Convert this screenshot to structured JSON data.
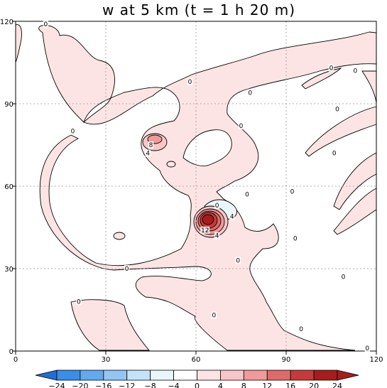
{
  "chart_data": {
    "type": "heatmap",
    "title": "w at 5 km (t = 1 h 20 m)",
    "xlim": [
      0,
      120
    ],
    "ylim": [
      0,
      120
    ],
    "x_ticks": [
      0,
      30,
      60,
      90,
      120
    ],
    "y_ticks": [
      0,
      30,
      60,
      90,
      120
    ],
    "x_tick_labels": [
      "0",
      "30",
      "60",
      "90",
      "120"
    ],
    "y_tick_labels": [
      "0",
      "30",
      "60",
      "90",
      "120"
    ],
    "grid": true,
    "contour_levels": [
      -24,
      -20,
      -16,
      -12,
      -8,
      -4,
      0,
      4,
      8,
      12,
      16,
      20,
      24
    ],
    "colorbar": {
      "labels": [
        "−24",
        "−20",
        "−16",
        "−12",
        "−8",
        "−4",
        "0",
        "4",
        "8",
        "12",
        "16",
        "20",
        "24"
      ],
      "colors": [
        "#1f6fd8",
        "#3b8ee8",
        "#63a9f0",
        "#92c6f5",
        "#c4e3fa",
        "#e8f7fb",
        "#ffffff",
        "#fde4e4",
        "#f8c6c6",
        "#f09a9a",
        "#df6a6a",
        "#c73a3a",
        "#a81c1c",
        "#a81c1c"
      ]
    },
    "contour_labels": [
      {
        "text": "0",
        "x": 10,
        "y": 119
      },
      {
        "text": "0",
        "x": 58,
        "y": 98
      },
      {
        "text": "0",
        "x": 78,
        "y": 94
      },
      {
        "text": "0",
        "x": 107,
        "y": 88
      },
      {
        "text": "0",
        "x": 113,
        "y": 102
      },
      {
        "text": "0",
        "x": 105,
        "y": 103
      },
      {
        "text": "0",
        "x": 19,
        "y": 80
      },
      {
        "text": "0",
        "x": 75,
        "y": 82
      },
      {
        "text": "0",
        "x": 106,
        "y": 72
      },
      {
        "text": "0",
        "x": 77,
        "y": 57
      },
      {
        "text": "0",
        "x": 92,
        "y": 58
      },
      {
        "text": "0",
        "x": 67,
        "y": 53
      },
      {
        "text": "0",
        "x": 37,
        "y": 30
      },
      {
        "text": "0",
        "x": 74,
        "y": 33
      },
      {
        "text": "0",
        "x": 93,
        "y": 41
      },
      {
        "text": "0",
        "x": 21,
        "y": 18
      },
      {
        "text": "0",
        "x": 109,
        "y": 27
      },
      {
        "text": "0",
        "x": 66,
        "y": 13
      },
      {
        "text": "0",
        "x": 95,
        "y": 8
      },
      {
        "text": "0",
        "x": 117,
        "y": 1
      },
      {
        "text": "8",
        "x": 45,
        "y": 75
      },
      {
        "text": "4",
        "x": 44,
        "y": 72
      },
      {
        "text": "4",
        "x": 72,
        "y": 49
      },
      {
        "text": "12",
        "x": 63,
        "y": 44
      },
      {
        "text": "4",
        "x": 67,
        "y": 42
      }
    ]
  }
}
